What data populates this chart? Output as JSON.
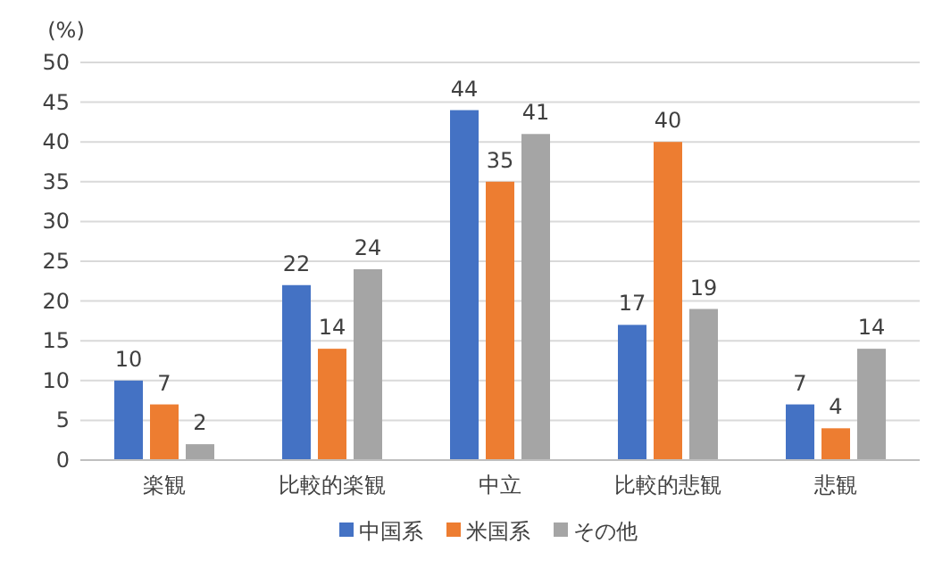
{
  "chart_data": {
    "type": "bar",
    "ylabel": "(%)",
    "categories": [
      "楽観",
      "比較的楽観",
      "中立",
      "比較的悲観",
      "悲観"
    ],
    "series": [
      {
        "name": "中国系",
        "color": "#4472c4",
        "values": [
          10,
          22,
          44,
          17,
          7
        ]
      },
      {
        "name": "米国系",
        "color": "#ed7d31",
        "values": [
          7,
          14,
          35,
          40,
          4
        ]
      },
      {
        "name": "その他",
        "color": "#a5a5a5",
        "values": [
          2,
          24,
          41,
          19,
          14
        ]
      }
    ],
    "ylim": [
      0,
      50
    ],
    "yticks": [
      0,
      5,
      10,
      15,
      20,
      25,
      30,
      35,
      40,
      45,
      50
    ],
    "grid": "y",
    "legend": "bottom",
    "data_labels": true
  }
}
